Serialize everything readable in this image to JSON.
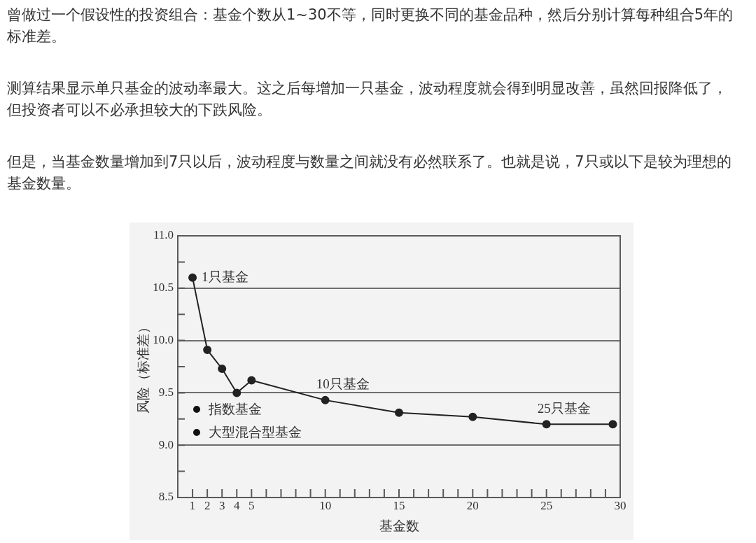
{
  "chart_data": {
    "type": "line",
    "title": "曾做过一个假设性的投资组合：基金个数从1~30不等，同时更换不同的基金品种，然后分别计算每种组合5年的标准差。",
    "subtitle": "测算结果显示单只基金的波动率最大。这之后每增加一只基金，波动程度就会得到明显改善，虽然回报降低了，但投资者可以不必承担较大的下跌风险。",
    "xlabel": "基金数",
    "ylabel": "风险（标准差）",
    "x": [
      1,
      2,
      3,
      4,
      5,
      10,
      15,
      20,
      25,
      29.5
    ],
    "values": [
      10.6,
      9.91,
      9.73,
      9.5,
      9.62,
      9.43,
      9.31,
      9.27,
      9.2,
      9.2
    ],
    "color": "#222222",
    "xlim": [
      0,
      30
    ],
    "xticks": [
      1,
      2,
      3,
      4,
      5,
      {
        "value": 6,
        "label": null
      },
      {
        "value": 7,
        "label": null
      },
      {
        "value": 8,
        "label": null
      },
      {
        "value": 9,
        "label": null
      },
      10,
      {
        "value": 11,
        "label": null
      },
      {
        "value": 12,
        "label": null
      },
      {
        "value": 13,
        "label": null
      },
      {
        "value": 14,
        "label": null
      },
      15,
      {
        "value": 16,
        "label": null
      },
      {
        "value": 17,
        "label": null
      },
      {
        "value": 18,
        "label": null
      },
      {
        "value": 19,
        "label": null
      },
      20,
      {
        "value": 21,
        "label": null
      },
      {
        "value": 22,
        "label": null
      },
      {
        "value": 23,
        "label": null
      },
      {
        "value": 24,
        "label": null
      },
      25,
      {
        "value": 26,
        "label": null
      },
      {
        "value": 27,
        "label": null
      },
      {
        "value": 28,
        "label": null
      },
      {
        "value": 29,
        "label": null
      },
      30
    ],
    "ylim": [
      8.5,
      11
    ],
    "yticks": [
      8.5,
      {
        "value": 8.75,
        "label": null
      },
      {
        "value": 9,
        "label": "9.0"
      },
      {
        "value": 9.25,
        "label": null
      },
      9.5,
      {
        "value": 9.75,
        "label": null
      },
      {
        "value": 10,
        "label": "10.0"
      },
      {
        "value": 10.25,
        "label": null
      },
      10.5,
      {
        "value": 10.75,
        "label": null
      },
      {
        "value": 11,
        "label": "11.0"
      }
    ],
    "grid": "y",
    "marker": "circle",
    "line_style": "solid",
    "annotations": [
      "但是，当基金数量增加到7只以后，波动程度与数量之间就没有必然联系了。也就是说，7只或以下是较为理想的基金数量。",
      {
        "text": "1只基金",
        "x": 1,
        "y": 10.6
      },
      {
        "text": "10只基金",
        "x": 10,
        "y": 9.43
      },
      {
        "text": "25只基金",
        "x": 25,
        "y": 9.2
      },
      "指数基金",
      "大型混合型基金"
    ]
  }
}
